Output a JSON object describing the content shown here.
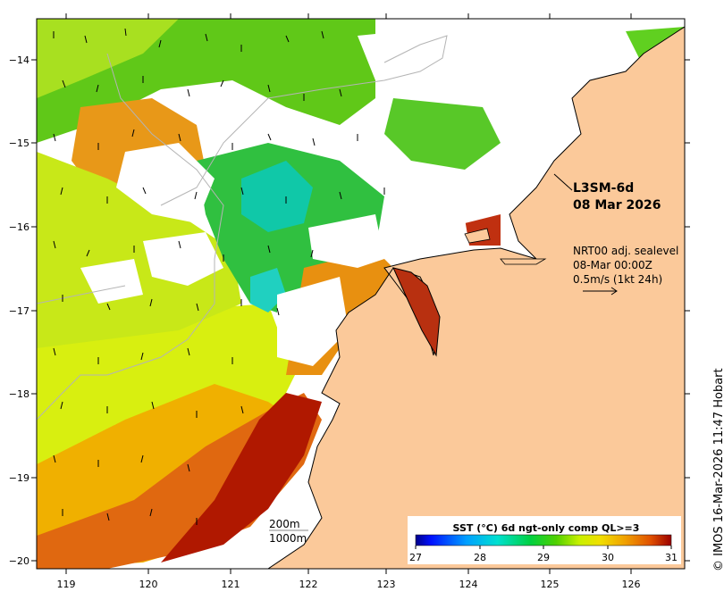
{
  "product": {
    "name": "L3SM-6d",
    "date": "08 Mar 2026"
  },
  "current": {
    "line1": "NRT00 adj. sealevel",
    "line2": "08-Mar 00:00Z",
    "line3": "0.5m/s (1kt 24h)"
  },
  "depth_labels": [
    "200m",
    "1000m"
  ],
  "colorbar": {
    "title": "SST (°C) 6d ngt-only comp QL>=3",
    "min": 27,
    "max": 31,
    "ticks": [
      "27",
      "28",
      "29",
      "30",
      "31"
    ]
  },
  "axes": {
    "lon_ticks": [
      "119",
      "120",
      "121",
      "122",
      "123",
      "124",
      "125",
      "126"
    ],
    "lat_ticks": [
      "−14",
      "−15",
      "−16",
      "−17",
      "−18",
      "−19",
      "−20"
    ]
  },
  "credit": "© IMOS 16-Mar-2026 11:47 Hobart",
  "colors": {
    "land": "#fbc99a",
    "coast": "#000000",
    "bathy": "#b4b4b4"
  }
}
